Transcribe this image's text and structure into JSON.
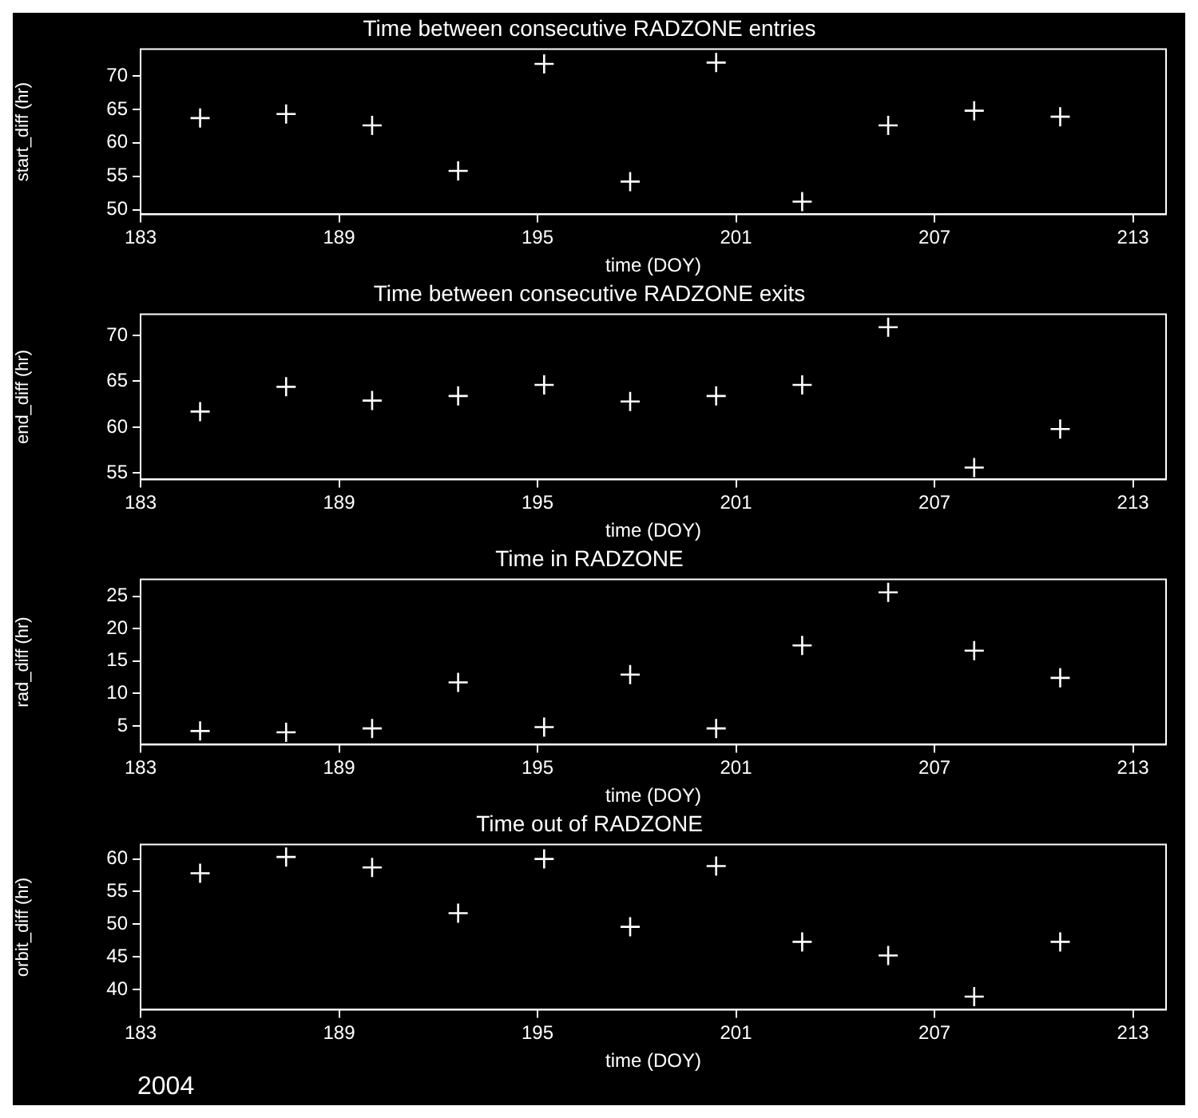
{
  "chart_data": [
    {
      "type": "scatter",
      "title": "Time between consecutive RADZONE entries",
      "xlabel": "time (DOY)",
      "ylabel": "start_diff (hr)",
      "xlim": [
        183,
        214
      ],
      "xticks": [
        183,
        189,
        195,
        201,
        207,
        213
      ],
      "ylim": [
        49.3,
        74
      ],
      "yticks": [
        50,
        55,
        60,
        65,
        70
      ],
      "grid": false,
      "legend": false,
      "marker": "cross",
      "series": [
        {
          "color": "#ffffff",
          "x": [
            184.8,
            187.4,
            190.0,
            192.6,
            195.2,
            197.8,
            200.4,
            203.0,
            205.6,
            208.2,
            210.8
          ],
          "values": [
            63.7,
            64.3,
            62.6,
            55.8,
            71.8,
            54.2,
            72.0,
            51.2,
            62.6,
            64.8,
            63.9
          ]
        }
      ]
    },
    {
      "type": "scatter",
      "title": "Time between consecutive RADZONE exits",
      "xlabel": "time (DOY)",
      "ylabel": "end_diff (hr)",
      "xlim": [
        183,
        214
      ],
      "xticks": [
        183,
        189,
        195,
        201,
        207,
        213
      ],
      "ylim": [
        54.3,
        72.3
      ],
      "yticks": [
        55,
        60,
        65,
        70
      ],
      "grid": false,
      "legend": false,
      "marker": "cross",
      "series": [
        {
          "color": "#ffffff",
          "x": [
            184.8,
            187.4,
            190.0,
            192.6,
            195.2,
            197.8,
            200.4,
            203.0,
            205.6,
            208.2,
            210.8
          ],
          "values": [
            61.7,
            64.4,
            62.9,
            63.4,
            64.6,
            62.8,
            63.4,
            64.6,
            70.9,
            55.6,
            59.8
          ]
        }
      ]
    },
    {
      "type": "scatter",
      "title": "Time in RADZONE",
      "xlabel": "time (DOY)",
      "ylabel": "rad_diff (hr)",
      "xlim": [
        183,
        214
      ],
      "xticks": [
        183,
        189,
        195,
        201,
        207,
        213
      ],
      "ylim": [
        2.1,
        27.6
      ],
      "yticks": [
        5,
        10,
        15,
        20,
        25
      ],
      "grid": false,
      "legend": false,
      "marker": "cross",
      "series": [
        {
          "color": "#ffffff",
          "x": [
            184.8,
            187.4,
            190.0,
            192.6,
            195.2,
            197.8,
            200.4,
            203.0,
            205.6,
            208.2,
            210.8
          ],
          "values": [
            4.2,
            4.0,
            4.6,
            11.7,
            4.8,
            12.9,
            4.6,
            17.4,
            25.6,
            16.6,
            12.4
          ]
        }
      ]
    },
    {
      "type": "scatter",
      "title": "Time out of RADZONE",
      "xlabel": "time (DOY)",
      "ylabel": "orbit_diff (hr)",
      "xlim": [
        183,
        214
      ],
      "xticks": [
        183,
        189,
        195,
        201,
        207,
        213
      ],
      "ylim": [
        36.9,
        62.2
      ],
      "yticks": [
        40,
        45,
        50,
        55,
        60
      ],
      "grid": false,
      "legend": false,
      "marker": "cross",
      "annotations": [
        "2004"
      ],
      "series": [
        {
          "color": "#ffffff",
          "x": [
            184.8,
            187.4,
            190.0,
            192.6,
            195.2,
            197.8,
            200.4,
            203.0,
            205.6,
            208.2,
            210.8
          ],
          "values": [
            57.8,
            60.3,
            58.7,
            51.7,
            60.0,
            49.6,
            58.9,
            47.3,
            45.2,
            38.9,
            47.3
          ]
        }
      ]
    }
  ]
}
